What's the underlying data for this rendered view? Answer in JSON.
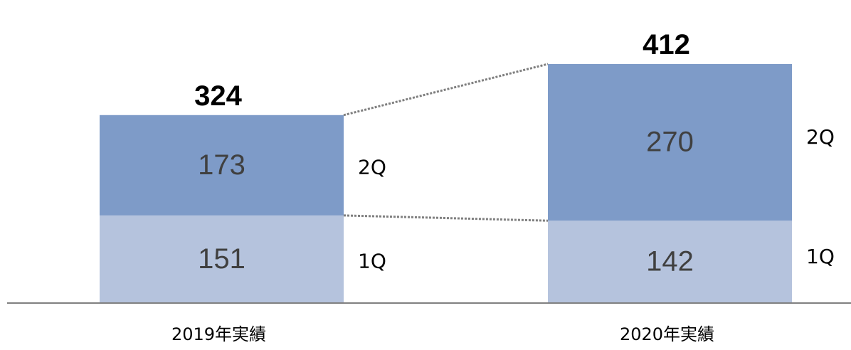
{
  "chart_data": {
    "type": "bar",
    "stacked": true,
    "categories": [
      "2019年実績",
      "2020年実績"
    ],
    "series": [
      {
        "name": "1Q",
        "values": [
          151,
          142
        ],
        "color": "#b5c3dd"
      },
      {
        "name": "2Q",
        "values": [
          173,
          270
        ],
        "color": "#7e9bc8"
      }
    ],
    "totals": [
      324,
      412
    ],
    "connector_lines": "dotted",
    "grid": false,
    "legend": "series labels right of bars"
  }
}
